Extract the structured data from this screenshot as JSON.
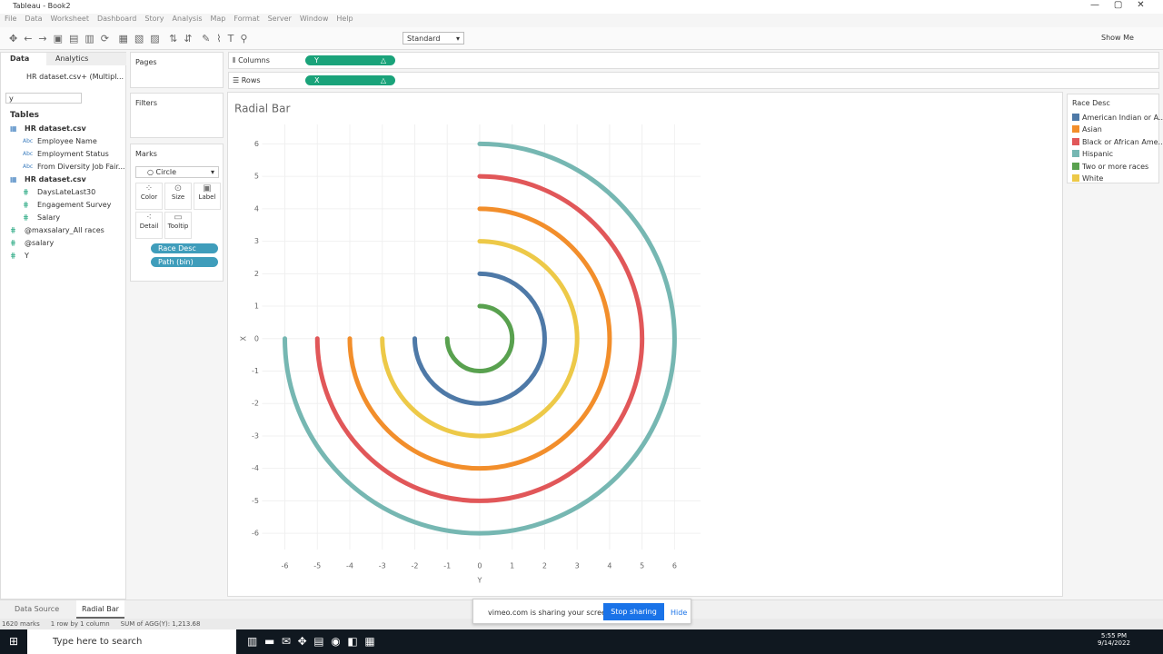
{
  "window": {
    "title": "Tableau - Book2"
  },
  "menu": [
    "File",
    "Data",
    "Worksheet",
    "Dashboard",
    "Story",
    "Analysis",
    "Map",
    "Format",
    "Server",
    "Window",
    "Help"
  ],
  "toolbar": {
    "fit": "Standard",
    "show_me": "Show Me"
  },
  "data_pane": {
    "tabs": [
      "Data",
      "Analytics"
    ],
    "source": "HR dataset.csv+ (Multipl...",
    "search": "y",
    "tables_heading": "Tables",
    "fields": [
      {
        "label": "HR dataset.csv",
        "table": true
      },
      {
        "label": "Employee Name",
        "icon": "Abc"
      },
      {
        "label": "Employment Status",
        "icon": "Abc"
      },
      {
        "label": "From Diversity Job Fair...",
        "icon": "Abc"
      },
      {
        "label": "HR dataset.csv",
        "table": true
      },
      {
        "label": "DaysLateLast30"
      },
      {
        "label": "Engagement Survey"
      },
      {
        "label": "Salary"
      },
      {
        "label": "@maxsalary_All races",
        "top": true
      },
      {
        "label": "@salary",
        "top": true
      },
      {
        "label": "Y",
        "top": true
      }
    ]
  },
  "shelves": {
    "pages": "Pages",
    "filters": "Filters",
    "marks": "Marks",
    "mark_type": "Circle",
    "mark_buttons": [
      "Color",
      "Size",
      "Label",
      "Detail",
      "Tooltip"
    ],
    "mark_pills": [
      "Race Desc",
      "Path (bin)"
    ],
    "columns": "Columns",
    "rows": "Rows",
    "columns_pill": "Y",
    "rows_pill": "X"
  },
  "chart_data": {
    "type": "radial_bar",
    "title": "Radial Bar",
    "x_label": "Y",
    "y_label": "X",
    "legend_title": "Race Desc",
    "xlim": [
      -6.7,
      6.8
    ],
    "ylim": [
      -6.5,
      6.6
    ],
    "xticks": [
      -6,
      -5,
      -4,
      -3,
      -2,
      -1,
      0,
      1,
      2,
      3,
      4,
      5,
      6
    ],
    "yticks": [
      -6,
      -5,
      -4,
      -3,
      -2,
      -1,
      0,
      1,
      2,
      3,
      4,
      5,
      6
    ],
    "grid": true,
    "series": [
      {
        "name": "American Indian or A..",
        "color": "#4e79a7",
        "radius": 2,
        "sweep": 270
      },
      {
        "name": "Asian",
        "color": "#f28e2b",
        "radius": 4,
        "sweep": 270
      },
      {
        "name": "Black or African Ame..",
        "color": "#e15759",
        "radius": 5,
        "sweep": 270
      },
      {
        "name": "Hispanic",
        "color": "#76b7b2",
        "radius": 6,
        "sweep": 270
      },
      {
        "name": "Two or more races",
        "color": "#59a14f",
        "radius": 1,
        "sweep": 270
      },
      {
        "name": "White",
        "color": "#edc948",
        "radius": 3,
        "sweep": 270
      }
    ]
  },
  "tabs": [
    "Data Source",
    "Radial Bar"
  ],
  "status": [
    "1620 marks",
    "1 row by 1 column",
    "SUM of AGG(Y): 1,213.68"
  ],
  "share_bar": {
    "text": "vimeo.com is sharing your screen.",
    "stop": "Stop sharing",
    "hide": "Hide"
  },
  "taskbar": {
    "search": "Type here to search",
    "time": "5:55 PM",
    "date": "9/14/2022"
  }
}
